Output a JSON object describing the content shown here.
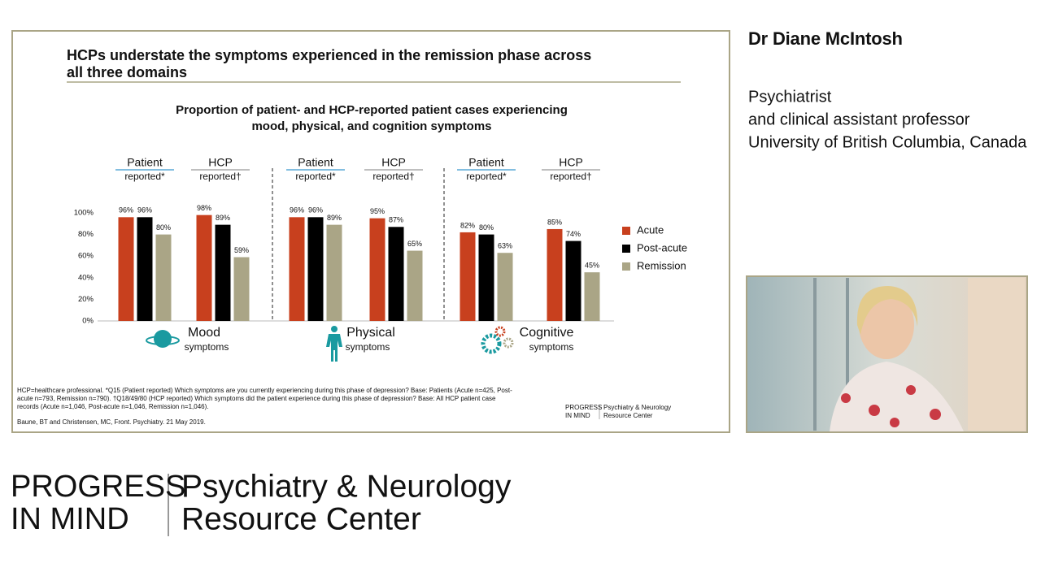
{
  "slide": {
    "title_lines": [
      "HCPs understate the symptoms experienced in the remission phase across",
      "all three domains"
    ],
    "footnote_lines": [
      "HCP=healthcare professional. *Q15 (Patient reported) Which symptoms are you currently experiencing during this phase of depression? Base: Patients (Acute n=425, Post-",
      "acute n=793, Remission n=790). †Q18/49/80 (HCP reported) Which symptoms did the patient experience during this phase of depression? Base: All HCP patient case",
      "records (Acute n=1,046, Post-acute n=1,046, Remission n=1,046)."
    ],
    "citation": "Baune, BT and Christensen, MC, Front. Psychiatry. 21 May 2019.",
    "logo": {
      "left": [
        "PROGRESS",
        "IN MIND"
      ],
      "right": [
        "Psychiatry & Neurology",
        "Resource Center"
      ]
    }
  },
  "chart_data": {
    "type": "bar",
    "title_lines": [
      "Proportion of patient- and HCP-reported patient cases experiencing",
      "mood, physical, and cognition symptoms"
    ],
    "categories": [
      [
        "Patient",
        "reported*"
      ],
      [
        "HCP",
        "reported†"
      ],
      [
        "Patient",
        "reported*"
      ],
      [
        "HCP",
        "reported†"
      ],
      [
        "Patient",
        "reported*"
      ],
      [
        "HCP",
        "reported†"
      ]
    ],
    "domains": [
      [
        "Mood",
        "symptoms"
      ],
      [
        "Physical",
        "symptoms"
      ],
      [
        "Cognitive",
        "symptoms"
      ]
    ],
    "series": [
      {
        "name": "Acute",
        "color": "#c8401e",
        "values": [
          96,
          98,
          96,
          95,
          82,
          85
        ],
        "value_labels": [
          "96%",
          "98%",
          "96%",
          "95%",
          "82%",
          "85%"
        ]
      },
      {
        "name": "Post-acute",
        "color": "#000000",
        "values": [
          96,
          89,
          96,
          87,
          80,
          74
        ],
        "value_labels": [
          "96%",
          "89%",
          "96%",
          "87%",
          "80%",
          "74%"
        ]
      },
      {
        "name": "Remission",
        "color": "#aaa586",
        "values": [
          80,
          59,
          89,
          65,
          63,
          45
        ],
        "value_labels": [
          "80%",
          "59%",
          "89%",
          "65%",
          "63%",
          "45%"
        ]
      }
    ],
    "ylim": [
      0,
      100
    ],
    "yticks": [
      {
        "value": 0,
        "label": "0%"
      },
      {
        "value": 20,
        "label": "20%"
      },
      {
        "value": 40,
        "label": "40%"
      },
      {
        "value": 60,
        "label": "60%"
      },
      {
        "value": 80,
        "label": "80%"
      },
      {
        "value": 100,
        "label": "100%"
      }
    ],
    "legend": "right"
  },
  "speaker": {
    "name": "Dr Diane McIntosh",
    "role_lines": [
      "Psychiatrist",
      "and clinical assistant professor",
      "University of British Columbia, Canada"
    ]
  },
  "brand": {
    "left": [
      "PROGRESS",
      "IN MIND"
    ],
    "right": [
      "Psychiatry & Neurology",
      "Resource Center"
    ]
  }
}
